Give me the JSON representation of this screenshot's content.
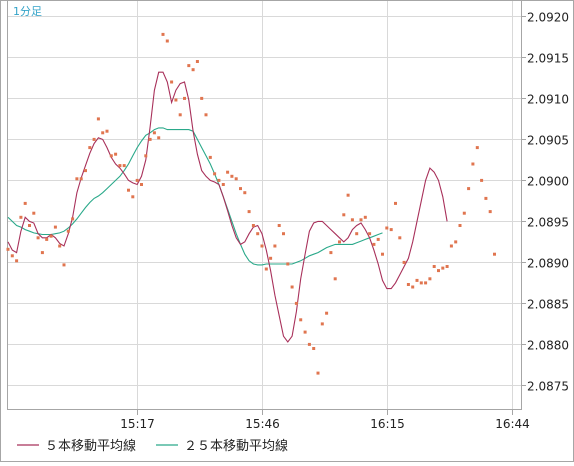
{
  "timeframe_label": "1分足",
  "colors": {
    "background": "#ffffff",
    "frame": "#a6a6a6",
    "grid": "#d9d9d9",
    "price_points": "#e0754f",
    "ma5": "#a8305a",
    "ma25": "#2aa98a",
    "timeframe_label": "#33a3c8",
    "axis_text": "#222222"
  },
  "legend": {
    "ma5_label": "５本移動平均線",
    "ma25_label": "２５本移動平均線"
  },
  "chart_data": {
    "type": "scatter",
    "title": "",
    "xlabel": "",
    "ylabel": "",
    "x_tick_labels": [
      "15:17",
      "15:46",
      "16:15",
      "16:44"
    ],
    "x_tick_index": [
      30,
      59,
      88,
      117
    ],
    "x_range": [
      0,
      118
    ],
    "y_tick_labels": [
      "2.0875",
      "2.0880",
      "2.0885",
      "2.0890",
      "2.0895",
      "2.0900",
      "2.0905",
      "2.0910",
      "2.0915",
      "2.0920"
    ],
    "ylim": [
      2.0872,
      2.0922
    ],
    "grid": true,
    "legend_position": "bottom",
    "series": [
      {
        "name": "",
        "kind": "points",
        "values": [
          2.08916,
          2.08908,
          2.08902,
          2.08955,
          2.08972,
          2.08945,
          2.0896,
          2.0893,
          2.08912,
          2.08928,
          2.08932,
          2.08943,
          2.0892,
          2.08897,
          2.08938,
          2.08953,
          2.09002,
          2.09002,
          2.09012,
          2.0904,
          2.0905,
          2.09075,
          2.09058,
          2.0906,
          2.0903,
          2.09032,
          2.09018,
          2.09018,
          2.08988,
          2.0898,
          2.09,
          2.08995,
          2.0903,
          2.0905,
          2.09058,
          2.09052,
          2.09178,
          2.0917,
          2.0912,
          2.09098,
          2.0908,
          2.091,
          2.0914,
          2.09135,
          2.09145,
          2.091,
          2.0908,
          2.09028,
          2.09008,
          2.09,
          2.08995,
          2.0901,
          2.09005,
          2.09002,
          2.0899,
          2.08985,
          2.08962,
          2.08945,
          2.08935,
          2.0892,
          2.08892,
          2.08905,
          2.0892,
          2.08945,
          2.08935,
          2.08898,
          2.0887,
          2.0885,
          2.0883,
          2.08815,
          2.088,
          2.08795,
          2.08765,
          2.08825,
          2.08838,
          2.08912,
          2.0888,
          2.08925,
          2.08958,
          2.08982,
          2.08952,
          2.08935,
          2.08952,
          2.08955,
          2.08935,
          2.08922,
          2.08928,
          2.0891,
          2.08942,
          2.0894,
          2.08972,
          2.0893,
          2.089,
          2.08873,
          2.0887,
          2.08878,
          2.08875,
          2.08875,
          2.0888,
          2.08895,
          2.0889,
          2.08893,
          2.08895,
          2.0892,
          2.08925,
          2.08945,
          2.0896,
          2.0899,
          2.0902,
          2.0904,
          2.09,
          2.08978,
          2.08962,
          2.0891
        ]
      },
      {
        "name": "５本移動平均線",
        "kind": "line",
        "values": [
          2.08925,
          2.08915,
          2.08912,
          2.08938,
          2.08955,
          2.0895,
          2.08948,
          2.08935,
          2.0893,
          2.0893,
          2.08934,
          2.0893,
          2.08923,
          2.0892,
          2.08935,
          2.08955,
          2.08985,
          2.09003,
          2.09018,
          2.09033,
          2.09045,
          2.09052,
          2.0905,
          2.0904,
          2.09028,
          2.0902,
          2.09015,
          2.09008,
          2.09,
          2.08997,
          2.08995,
          2.09005,
          2.09025,
          2.09065,
          2.0911,
          2.09132,
          2.09132,
          2.0912,
          2.09095,
          2.0911,
          2.09118,
          2.0912,
          2.09098,
          2.0906,
          2.09032,
          2.09012,
          2.09005,
          2.09,
          2.08998,
          2.08995,
          2.0898,
          2.08963,
          2.08945,
          2.0893,
          2.08922,
          2.08925,
          2.08935,
          2.08943,
          2.08945,
          2.08935,
          2.08915,
          2.0889,
          2.0886,
          2.08835,
          2.0881,
          2.08803,
          2.0881,
          2.0884,
          2.0888,
          2.0891,
          2.08938,
          2.08948,
          2.0895,
          2.0895,
          2.08945,
          2.0894,
          2.08935,
          2.0893,
          2.08925,
          2.0893,
          2.0894,
          2.08945,
          2.08948,
          2.0894,
          2.0893,
          2.08915,
          2.08898,
          2.08878,
          2.08868,
          2.08868,
          2.08875,
          2.08885,
          2.08895,
          2.08905,
          2.08925,
          2.0895,
          2.08975,
          2.09,
          2.09015,
          2.0901,
          2.09,
          2.0898,
          2.0895
        ]
      },
      {
        "name": "２５本移動平均線",
        "kind": "line",
        "values": [
          2.08955,
          2.0895,
          2.08945,
          2.08943,
          2.0894,
          2.08938,
          2.08936,
          2.08935,
          2.08934,
          2.08934,
          2.08934,
          2.08935,
          2.08936,
          2.08938,
          2.08942,
          2.08947,
          2.08953,
          2.0896,
          2.08967,
          2.08973,
          2.08978,
          2.08981,
          2.08985,
          2.0899,
          2.08995,
          2.09,
          2.09005,
          2.09012,
          2.0902,
          2.0903,
          2.0904,
          2.09048,
          2.09055,
          2.09058,
          2.09062,
          2.09064,
          2.09064,
          2.09062,
          2.09062,
          2.09062,
          2.09062,
          2.09062,
          2.09062,
          2.0906,
          2.0905,
          2.0904,
          2.0903,
          2.0902,
          2.09008,
          2.08995,
          2.0898,
          2.08965,
          2.0895,
          2.08935,
          2.08922,
          2.0891,
          2.08902,
          2.08898,
          2.08897,
          2.08897,
          2.08898,
          2.08898,
          2.08898,
          2.08898,
          2.08898,
          2.08898,
          2.08898,
          2.089,
          2.08902,
          2.08905,
          2.08908,
          2.0891,
          2.08912,
          2.08915,
          2.08918,
          2.0892,
          2.08922,
          2.08922,
          2.08922,
          2.08922,
          2.08922,
          2.08924,
          2.08926,
          2.08928,
          2.0893,
          2.08932,
          2.08934,
          2.08936
        ]
      }
    ]
  }
}
